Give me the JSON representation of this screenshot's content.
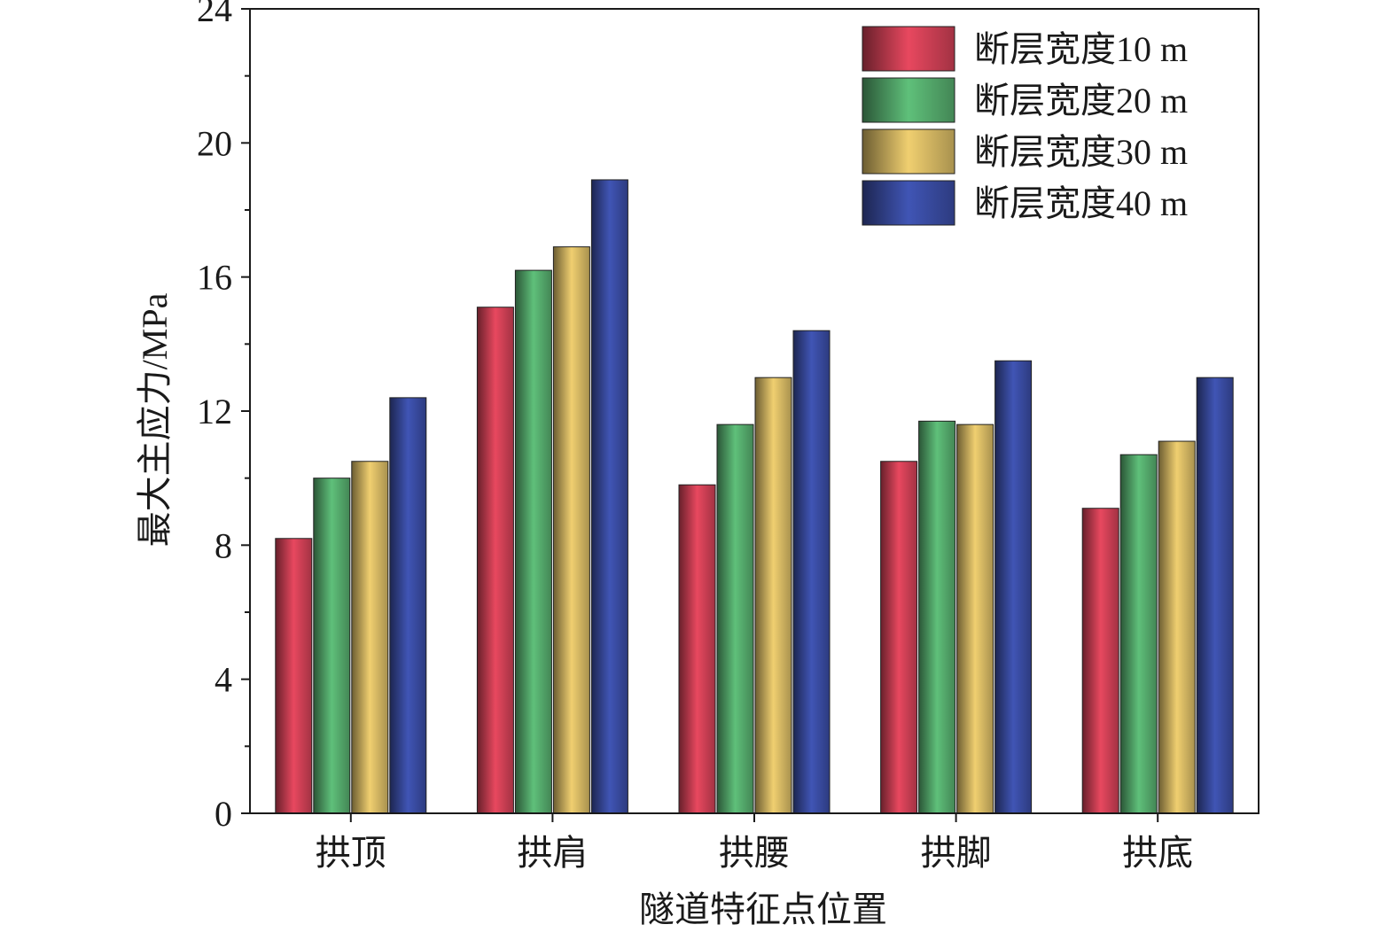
{
  "chart_data": {
    "type": "bar",
    "xlabel": "隧道特征点位置",
    "ylabel": "最大主应力/MPa",
    "ylim": [
      0,
      24
    ],
    "yticks": [
      0,
      4,
      8,
      12,
      16,
      20,
      24
    ],
    "grid": false,
    "legend_position": "top-right",
    "categories": [
      "拱顶",
      "拱肩",
      "拱腰",
      "拱脚",
      "拱底"
    ],
    "series": [
      {
        "name": "断层宽度10 m",
        "color": "#e8485f",
        "values": [
          8.2,
          15.1,
          9.8,
          10.5,
          9.1
        ]
      },
      {
        "name": "断层宽度20 m",
        "color": "#5fc07a",
        "values": [
          10.0,
          16.2,
          11.6,
          11.7,
          10.7
        ]
      },
      {
        "name": "断层宽度30 m",
        "color": "#f0cf70",
        "values": [
          10.5,
          16.9,
          13.0,
          11.6,
          11.1
        ]
      },
      {
        "name": "断层宽度40 m",
        "color": "#4055b5",
        "values": [
          12.4,
          18.9,
          14.4,
          13.5,
          13.0
        ]
      }
    ]
  }
}
